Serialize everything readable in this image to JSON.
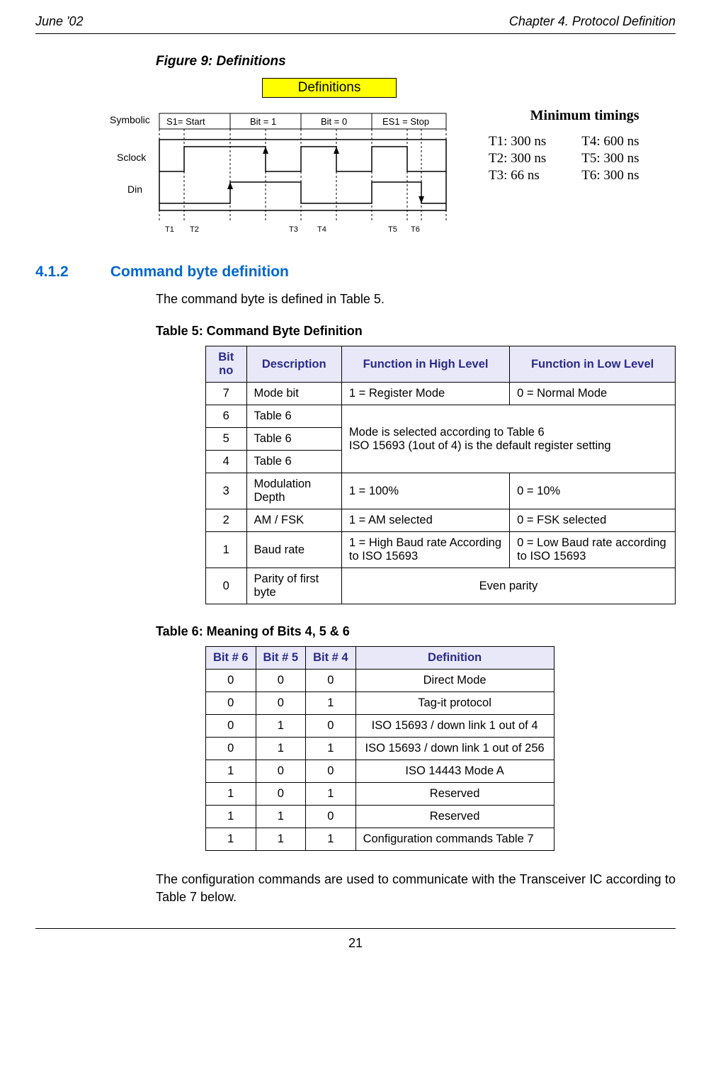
{
  "header": {
    "left": "June '02",
    "right": "Chapter 4. Protocol Definition"
  },
  "figure": {
    "title": "Figure 9: Definitions",
    "box_label": "Definitions",
    "labels": {
      "symbolic": "Symbolic",
      "sclock": "Sclock",
      "din": "Din",
      "s1": "S1= Start",
      "bit1": "Bit = 1",
      "bit0": "Bit = 0",
      "es1": "ES1 = Stop",
      "t1": "T1",
      "t2": "T2",
      "t3": "T3",
      "t4": "T4",
      "t5": "T5",
      "t6": "T6"
    },
    "timings": {
      "title": "Minimum timings",
      "t1": "T1: 300 ns",
      "t4": "T4: 600 ns",
      "t2": "T2: 300 ns",
      "t5": "T5: 300 ns",
      "t3": "T3: 66 ns",
      "t6": "T6: 300 ns"
    },
    "colors": {
      "box_bg": "#ffff00"
    }
  },
  "section": {
    "num": "4.1.2",
    "title": "Command byte definition",
    "intro": "The command byte is defined in Table 5."
  },
  "table5": {
    "title": "Table 5: Command Byte Definition",
    "headers": [
      "Bit no",
      "Description",
      "Function in High Level",
      "Function in Low Level"
    ],
    "rows": {
      "r7": {
        "bit": "7",
        "desc": "Mode bit",
        "high": "1 = Register Mode",
        "low": "0 = Normal Mode"
      },
      "r6": {
        "bit": "6",
        "desc": "Table 6"
      },
      "r5": {
        "bit": "5",
        "desc": "Table 6"
      },
      "r4": {
        "bit": "4",
        "desc": "Table 6"
      },
      "merged_456": "Mode is selected according to Table 6\nISO 15693 (1out of 4) is the default register setting",
      "r3": {
        "bit": "3",
        "desc": "Modulation Depth",
        "high": "1 = 100%",
        "low": "0 = 10%"
      },
      "r2": {
        "bit": "2",
        "desc": "AM / FSK",
        "high": "1 = AM selected",
        "low": "0 = FSK selected"
      },
      "r1": {
        "bit": "1",
        "desc": "Baud rate",
        "high": "1 = High Baud rate According to ISO 15693",
        "low": "0 = Low Baud rate according to ISO 15693"
      },
      "r0": {
        "bit": "0",
        "desc": "Parity of first byte",
        "merged": "Even parity"
      }
    }
  },
  "table6": {
    "title": "Table 6: Meaning of Bits 4, 5 & 6",
    "headers": [
      "Bit # 6",
      "Bit # 5",
      "Bit # 4",
      "Definition"
    ],
    "rows": [
      [
        "0",
        "0",
        "0",
        "Direct Mode"
      ],
      [
        "0",
        "0",
        "1",
        "Tag-it protocol"
      ],
      [
        "0",
        "1",
        "0",
        "ISO 15693 / down link 1 out of 4"
      ],
      [
        "0",
        "1",
        "1",
        "ISO 15693 / down link 1 out of 256"
      ],
      [
        "1",
        "0",
        "0",
        "ISO 14443 Mode A"
      ],
      [
        "1",
        "0",
        "1",
        "Reserved"
      ],
      [
        "1",
        "1",
        "0",
        "Reserved"
      ],
      [
        "1",
        "1",
        "1",
        "Configuration commands Table 7"
      ]
    ]
  },
  "outro": "The configuration commands are used to communicate with the Transceiver IC according to Table 7 below.",
  "pagenum": "21",
  "style": {
    "heading_color": "#0066cc",
    "th_bg": "#e8e8f8",
    "th_color": "#2a2a8a"
  }
}
